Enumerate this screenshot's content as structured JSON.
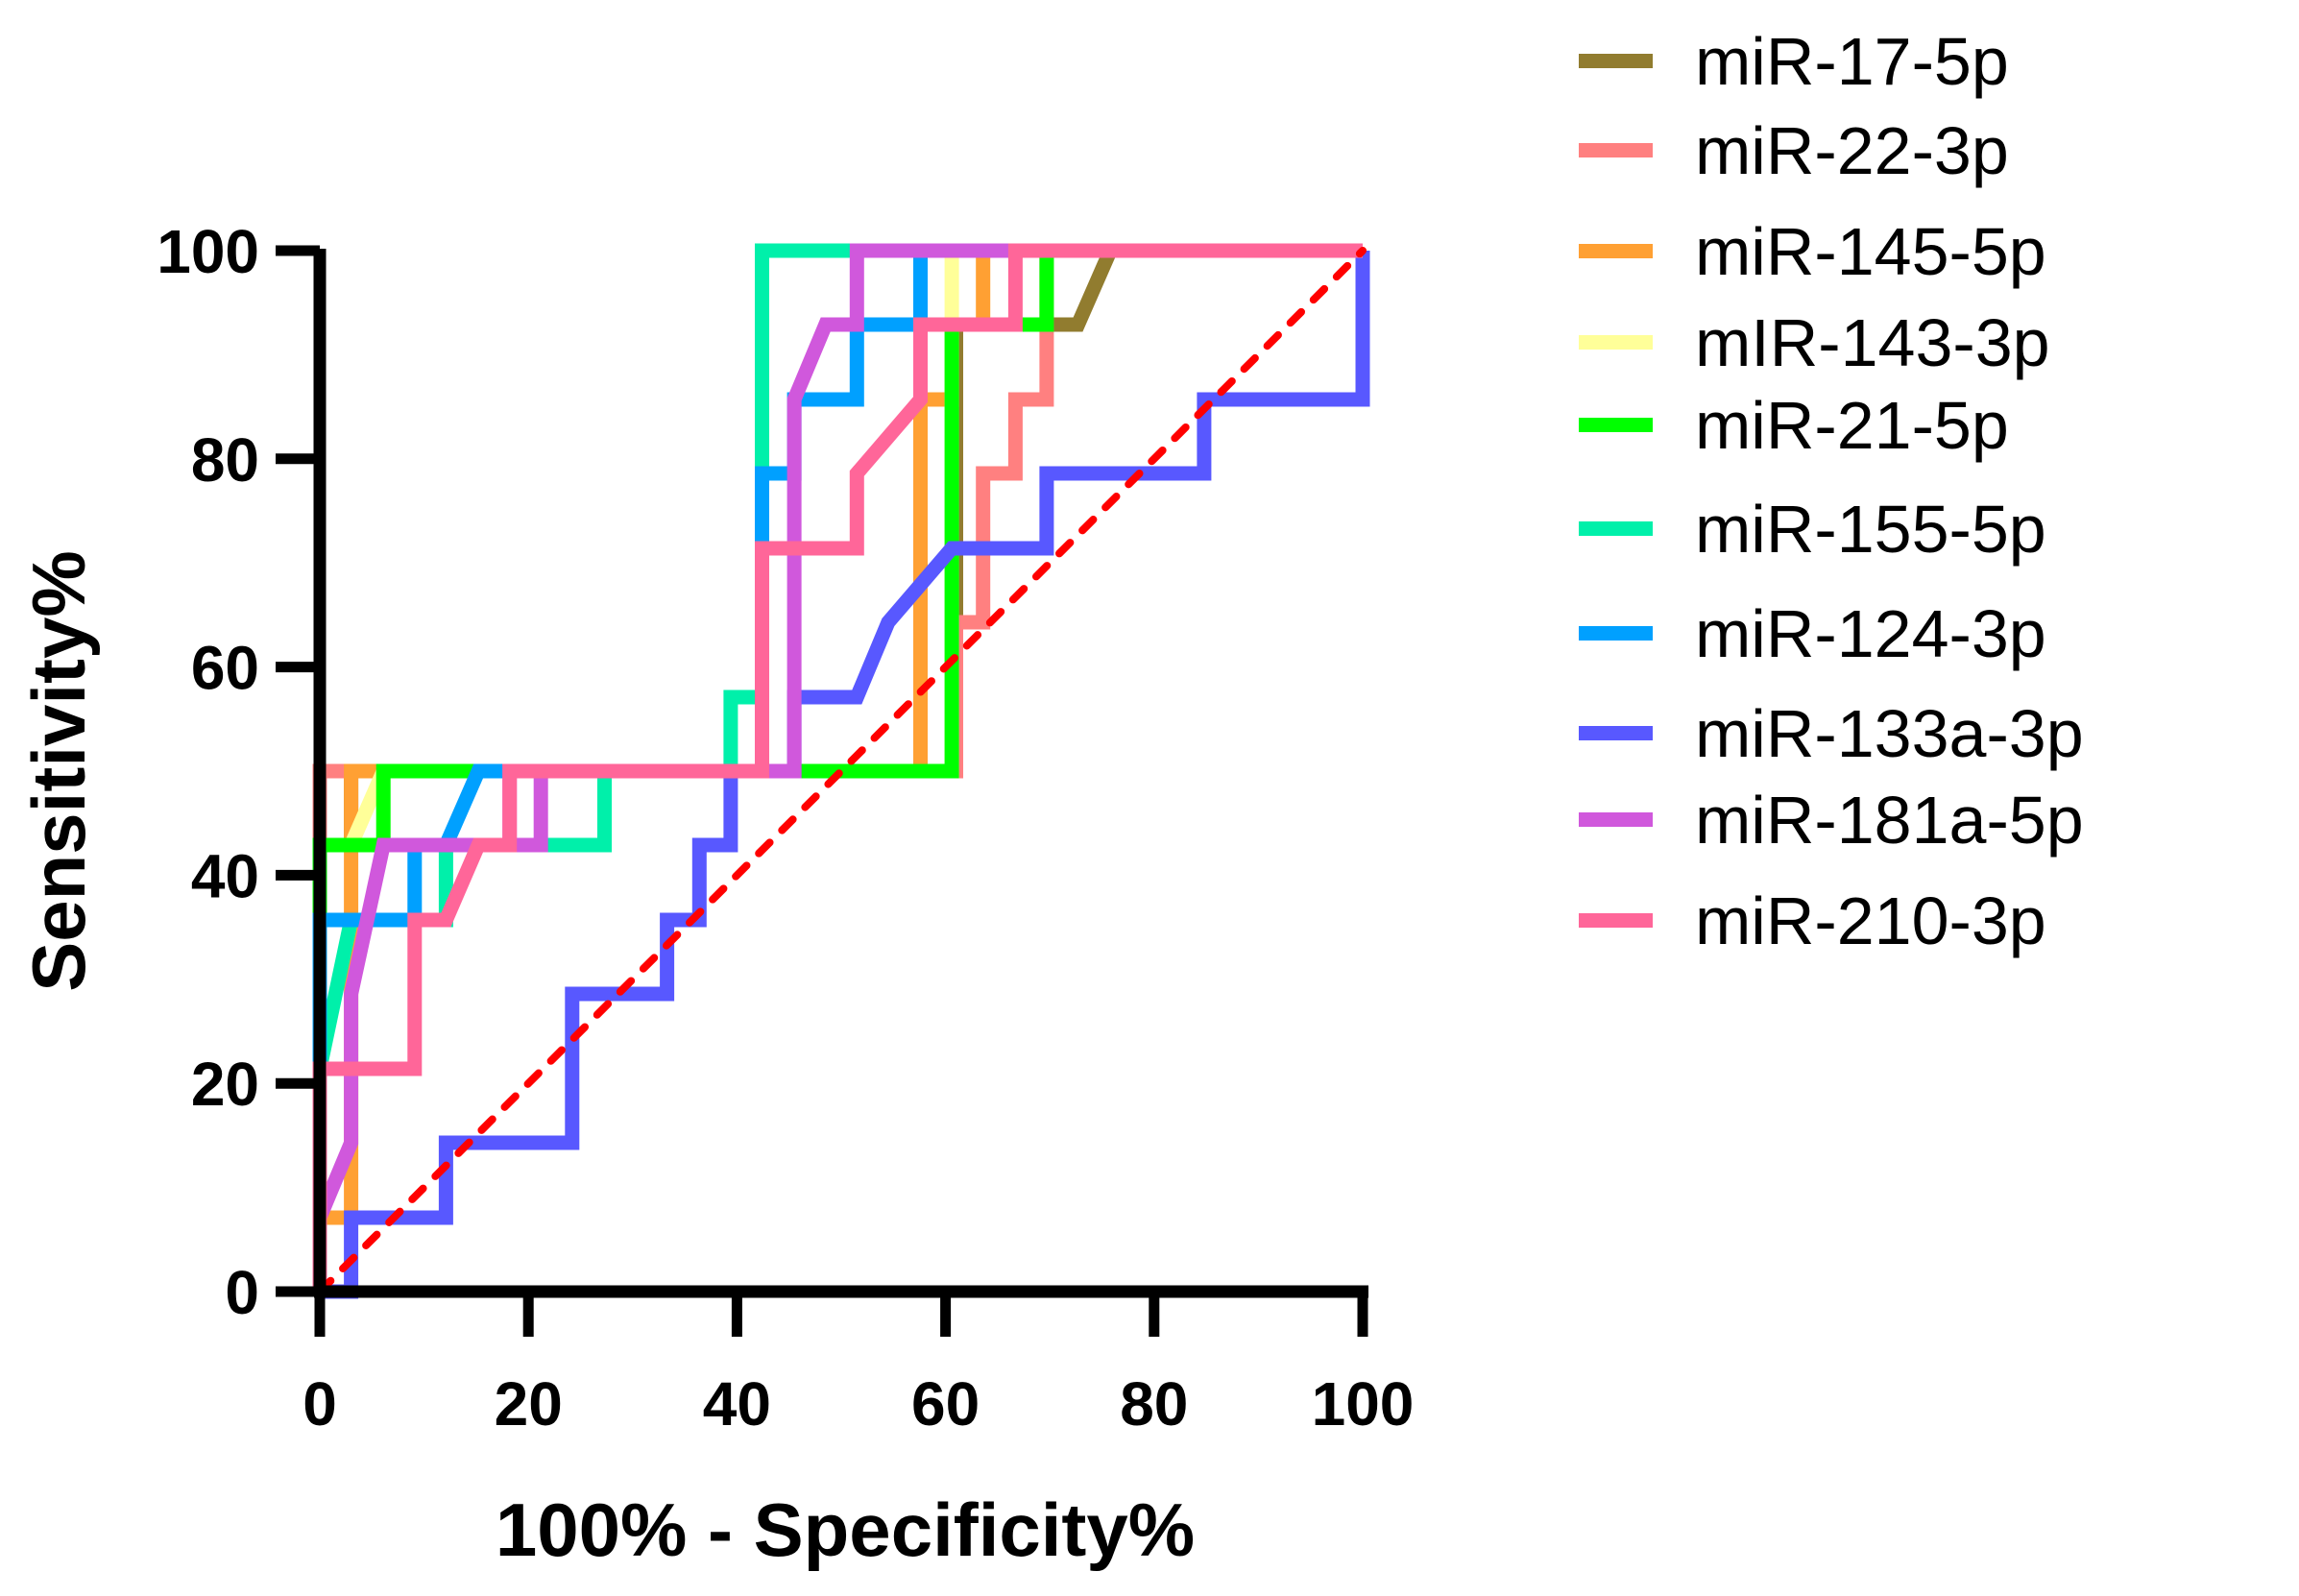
{
  "chart_data": {
    "type": "line",
    "title": "",
    "xlabel": "100% - Specificity%",
    "ylabel": "Sensitivity%",
    "xlim": [
      0,
      100
    ],
    "ylim": [
      0,
      100
    ],
    "x_ticks": [
      "0",
      "20",
      "40",
      "60",
      "80",
      "100"
    ],
    "y_ticks": [
      "0",
      "20",
      "40",
      "60",
      "80",
      "100"
    ],
    "grid": false,
    "legend_position": "right",
    "reference_line": {
      "name": "identity",
      "style": "dashed",
      "color": "#ff0000",
      "points": [
        [
          0,
          0
        ],
        [
          100,
          100
        ]
      ]
    },
    "series": [
      {
        "name": "miR-17-5p",
        "color": "#917c2f",
        "points": [
          [
            0,
            0
          ],
          [
            0,
            42.9
          ],
          [
            3,
            42.9
          ],
          [
            3,
            50
          ],
          [
            61,
            50
          ],
          [
            61,
            92.9
          ],
          [
            72.7,
            92.9
          ],
          [
            75.8,
            100
          ],
          [
            100,
            100
          ]
        ]
      },
      {
        "name": "miR-22-3p",
        "color": "#ff8080",
        "points": [
          [
            0,
            0
          ],
          [
            0,
            50
          ],
          [
            61,
            50
          ],
          [
            61,
            64.3
          ],
          [
            63.6,
            64.3
          ],
          [
            63.6,
            78.6
          ],
          [
            66.7,
            78.6
          ],
          [
            66.7,
            85.7
          ],
          [
            69.7,
            85.7
          ],
          [
            69.7,
            100
          ],
          [
            100,
            100
          ]
        ]
      },
      {
        "name": "miR-145-5p",
        "color": "#ffa033",
        "points": [
          [
            0,
            0
          ],
          [
            0,
            7.1
          ],
          [
            3,
            7.1
          ],
          [
            3,
            50
          ],
          [
            57.6,
            50
          ],
          [
            57.6,
            85.7
          ],
          [
            60.6,
            85.7
          ],
          [
            60.6,
            92.9
          ],
          [
            63.6,
            92.9
          ],
          [
            63.6,
            100
          ],
          [
            100,
            100
          ]
        ]
      },
      {
        "name": "mIR-143-3p",
        "color": "#ffff99",
        "points": [
          [
            0,
            0
          ],
          [
            0,
            42.9
          ],
          [
            3,
            42.9
          ],
          [
            6.1,
            50
          ],
          [
            60.6,
            50
          ],
          [
            60.6,
            100
          ],
          [
            100,
            100
          ]
        ]
      },
      {
        "name": "miR-21-5p",
        "color": "#00ff00",
        "points": [
          [
            0,
            0
          ],
          [
            0,
            42.9
          ],
          [
            6.1,
            42.9
          ],
          [
            6.1,
            50
          ],
          [
            60.6,
            50
          ],
          [
            60.6,
            92.9
          ],
          [
            69.7,
            92.9
          ],
          [
            69.7,
            100
          ],
          [
            100,
            100
          ]
        ]
      },
      {
        "name": "miR-155-5p",
        "color": "#00f0aa",
        "points": [
          [
            0,
            0
          ],
          [
            0,
            21.4
          ],
          [
            3,
            35.7
          ],
          [
            12.1,
            35.7
          ],
          [
            12.1,
            42.9
          ],
          [
            27.3,
            42.9
          ],
          [
            27.3,
            50
          ],
          [
            39.4,
            50
          ],
          [
            39.4,
            57.1
          ],
          [
            42.4,
            57.1
          ],
          [
            42.4,
            100
          ],
          [
            100,
            100
          ]
        ]
      },
      {
        "name": "miR-124-3p",
        "color": "#00a0ff",
        "points": [
          [
            0,
            0
          ],
          [
            0,
            35.7
          ],
          [
            9.1,
            35.7
          ],
          [
            9.1,
            42.9
          ],
          [
            12.1,
            42.9
          ],
          [
            15.2,
            50
          ],
          [
            42.4,
            50
          ],
          [
            42.4,
            78.6
          ],
          [
            45.5,
            78.6
          ],
          [
            45.5,
            85.7
          ],
          [
            51.5,
            85.7
          ],
          [
            51.5,
            92.9
          ],
          [
            57.6,
            92.9
          ],
          [
            57.6,
            100
          ],
          [
            100,
            100
          ]
        ]
      },
      {
        "name": "miR-133a-3p",
        "color": "#5858ff",
        "points": [
          [
            0,
            0
          ],
          [
            3,
            0
          ],
          [
            3,
            7.1
          ],
          [
            12.1,
            7.1
          ],
          [
            12.1,
            14.3
          ],
          [
            24.2,
            14.3
          ],
          [
            24.2,
            28.6
          ],
          [
            33.3,
            28.6
          ],
          [
            33.3,
            35.7
          ],
          [
            36.4,
            35.7
          ],
          [
            36.4,
            42.9
          ],
          [
            39.4,
            42.9
          ],
          [
            39.4,
            50
          ],
          [
            45.5,
            50
          ],
          [
            45.5,
            57.1
          ],
          [
            51.5,
            57.1
          ],
          [
            54.5,
            64.3
          ],
          [
            60.6,
            71.4
          ],
          [
            69.7,
            71.4
          ],
          [
            69.7,
            78.6
          ],
          [
            84.8,
            78.6
          ],
          [
            84.8,
            85.7
          ],
          [
            100,
            85.7
          ],
          [
            100,
            100
          ]
        ]
      },
      {
        "name": "miR-181a-5p",
        "color": "#d058dc",
        "points": [
          [
            0,
            0
          ],
          [
            0,
            7.1
          ],
          [
            3,
            14.3
          ],
          [
            3,
            28.6
          ],
          [
            6.1,
            42.9
          ],
          [
            18.2,
            42.9
          ],
          [
            18.2,
            50
          ],
          [
            21.2,
            50
          ],
          [
            21.2,
            42.9
          ],
          [
            18.2,
            42.9
          ],
          [
            18.2,
            50
          ],
          [
            45.5,
            50
          ],
          [
            45.5,
            85.7
          ],
          [
            48.5,
            92.9
          ],
          [
            51.5,
            92.9
          ],
          [
            51.5,
            100
          ],
          [
            100,
            100
          ]
        ]
      },
      {
        "name": "miR-210-3p",
        "color": "#ff6699",
        "points": [
          [
            0,
            0
          ],
          [
            0,
            21.4
          ],
          [
            9.1,
            21.4
          ],
          [
            9.1,
            35.7
          ],
          [
            12.1,
            35.7
          ],
          [
            15.2,
            42.9
          ],
          [
            18.2,
            42.9
          ],
          [
            18.2,
            50
          ],
          [
            42.4,
            50
          ],
          [
            42.4,
            71.4
          ],
          [
            51.5,
            71.4
          ],
          [
            51.5,
            78.6
          ],
          [
            57.6,
            85.7
          ],
          [
            57.6,
            92.9
          ],
          [
            66.7,
            92.9
          ],
          [
            66.7,
            100
          ],
          [
            100,
            100
          ]
        ]
      }
    ]
  }
}
